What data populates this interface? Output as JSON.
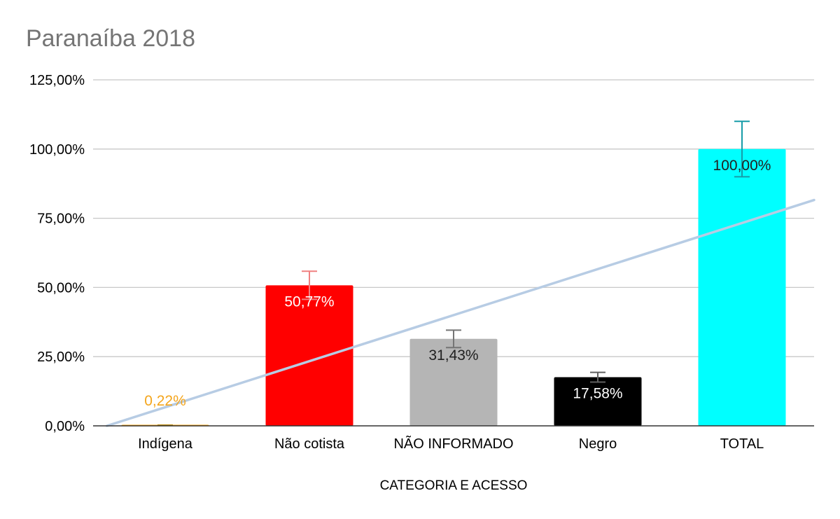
{
  "chart_data": {
    "type": "bar",
    "title": "Paranaíba 2018",
    "xlabel": "CATEGORIA E ACESSO",
    "ylabel": "",
    "categories": [
      "Indígena",
      "Não cotista",
      "NÃO INFORMADO",
      "Negro",
      "TOTAL"
    ],
    "values": [
      0.22,
      50.77,
      31.43,
      17.58,
      100.0
    ],
    "data_labels": [
      "0,22%",
      "50,77%",
      "31,43%",
      "17,58%",
      "100,00%"
    ],
    "error_bar_percent": 10,
    "ylim": [
      0,
      125
    ],
    "yticks": [
      0,
      25,
      50,
      75,
      100,
      125
    ],
    "ytick_labels": [
      "0,00%",
      "25,00%",
      "50,00%",
      "75,00%",
      "100,00%",
      "125,00%"
    ],
    "grid": true,
    "legend": "none",
    "trendline": {
      "type": "linear",
      "color": "#B7CCE4"
    },
    "colors": [
      "#FFA000",
      "#FF0000",
      "#B5B5B5",
      "#000000",
      "#00FFFF"
    ],
    "error_bar_colors": [
      "#B8860B",
      "#F08080",
      "#757575",
      "#616161",
      "#179CA8"
    ],
    "label_colors": [
      "#F4A51C",
      "#FFFFFF",
      "#212121",
      "#FFFFFF",
      "#212121"
    ]
  }
}
